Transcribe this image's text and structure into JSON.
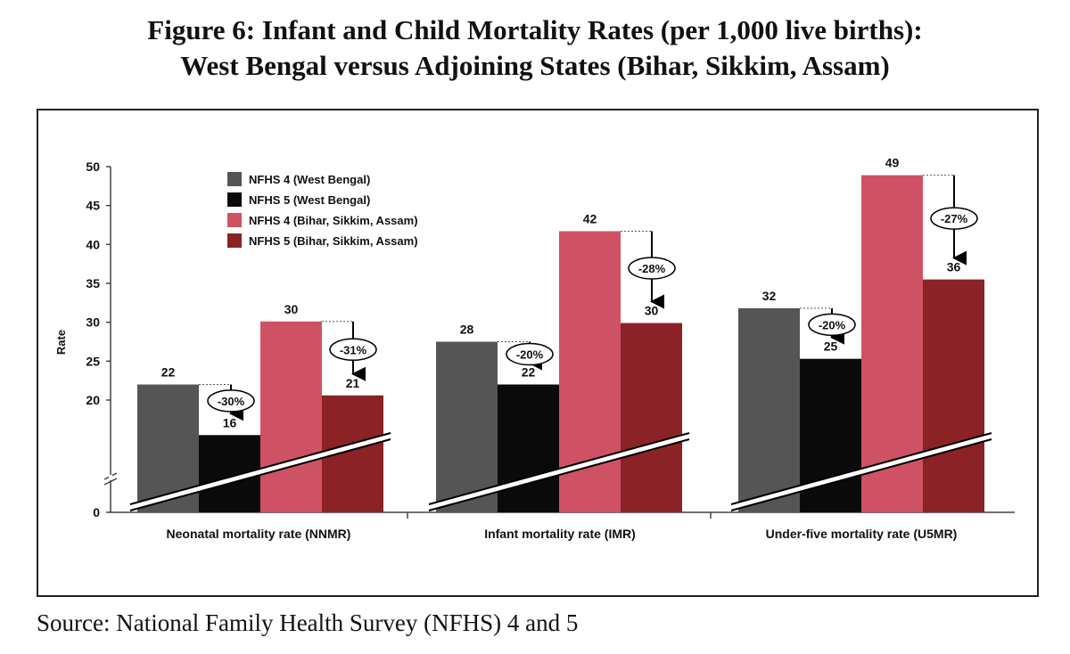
{
  "title": {
    "line1": "Figure 6: Infant and Child Mortality Rates (per 1,000 live births):",
    "line2": "West Bengal versus Adjoining States (Bihar, Sikkim, Assam)"
  },
  "source": "Source: National Family Health Survey (NFHS) 4 and 5",
  "chart_data": {
    "type": "bar",
    "ylabel": "Rate",
    "xlabel": "",
    "yticks": [
      0,
      20,
      25,
      30,
      35,
      40,
      45,
      50
    ],
    "ylim": [
      0,
      50
    ],
    "axis_break": "between 0 and 20",
    "categories": [
      "Neonatal mortality rate (NNMR)",
      "Infant mortality rate (IMR)",
      "Under-five mortality rate (U5MR)"
    ],
    "series": [
      {
        "name": "NFHS 4 (West Bengal)",
        "color": "#555555",
        "values": [
          22,
          28,
          32
        ]
      },
      {
        "name": "NFHS 5 (West Bengal)",
        "color": "#0a0a0a",
        "values": [
          16,
          22,
          25
        ]
      },
      {
        "name": "NFHS 4 (Bihar, Sikkim, Assam)",
        "color": "#cf5264",
        "values": [
          30,
          42,
          49
        ]
      },
      {
        "name": "NFHS 5 (Bihar, Sikkim, Assam)",
        "color": "#8b2225",
        "values": [
          21,
          30,
          36
        ]
      }
    ],
    "plotted_values": [
      [
        22,
        27.5,
        31.8
      ],
      [
        15.5,
        22,
        25.3
      ],
      [
        30.1,
        41.7,
        48.9
      ],
      [
        20.6,
        29.9,
        35.5
      ]
    ],
    "annotations": {
      "west_bengal_change": [
        "-30%",
        "-20%",
        "-20%"
      ],
      "adjoining_change": [
        "-31%",
        "-28%",
        "-27%"
      ]
    },
    "legend_position": "top-left"
  }
}
